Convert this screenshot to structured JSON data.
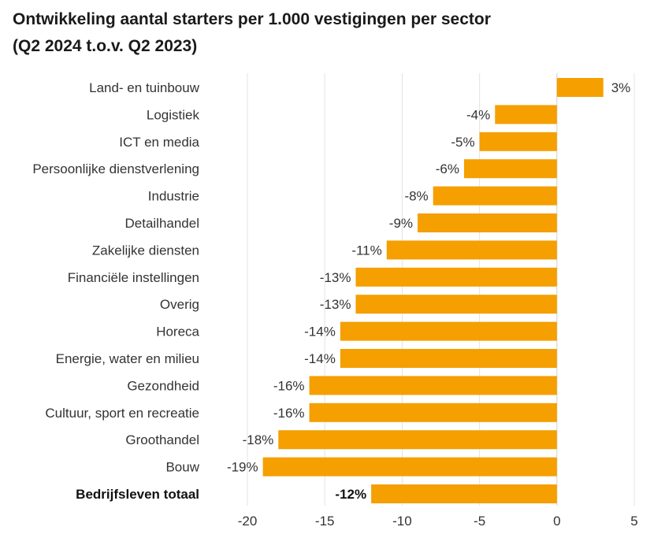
{
  "chart_data": {
    "type": "bar",
    "orientation": "horizontal",
    "title": "Ontwikkeling aantal starters per 1.000 vestigingen per sector",
    "subtitle": "(Q2 2024 t.o.v. Q2 2023)",
    "categories": [
      "Land- en tuinbouw",
      "Logistiek",
      "ICT en media",
      "Persoonlijke dienstverlening",
      "Industrie",
      "Detailhandel",
      "Zakelijke diensten",
      "Financiële instellingen",
      "Overig",
      "Horeca",
      "Energie, water en milieu",
      "Gezondheid",
      "Cultuur, sport en recreatie",
      "Groothandel",
      "Bouw",
      "Bedrijfsleven totaal"
    ],
    "values": [
      3,
      -4,
      -5,
      -6,
      -8,
      -9,
      -11,
      -13,
      -13,
      -14,
      -14,
      -16,
      -16,
      -18,
      -19,
      -12
    ],
    "value_labels": [
      "3%",
      "-4%",
      "-5%",
      "-6%",
      "-8%",
      "-9%",
      "-11%",
      "-13%",
      "-13%",
      "-14%",
      "-14%",
      "-16%",
      "-16%",
      "-18%",
      "-19%",
      "-12%"
    ],
    "highlight_category": "Bedrijfsleven totaal",
    "xlim": [
      -20,
      5
    ],
    "xticks": [
      -20,
      -15,
      -10,
      -5,
      0,
      5
    ],
    "xtick_labels": [
      "-20",
      "-15",
      "-10",
      "-5",
      "0",
      "5"
    ],
    "xlabel": "",
    "ylabel": "",
    "grid": "vertical",
    "legend": "none",
    "bar_color": "#f59f00"
  }
}
